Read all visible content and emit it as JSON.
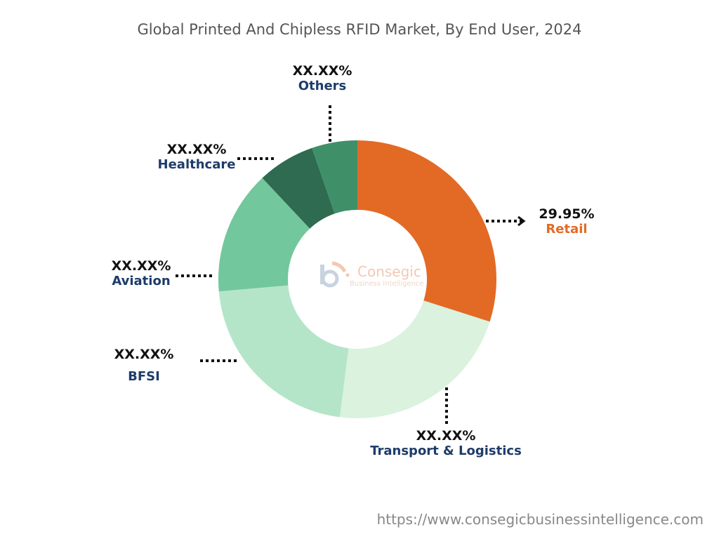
{
  "chart_data": {
    "type": "pie",
    "donut": true,
    "title": "Global Printed And Chipless RFID Market, By End User, 2024",
    "categories": [
      "Retail",
      "Transport & Logistics",
      "BFSI",
      "Aviation",
      "Healthcare",
      "Others"
    ],
    "values": [
      29.95,
      22.1,
      21.6,
      14.4,
      6.7,
      5.3
    ],
    "labels": [
      "29.95%",
      "XX.XX%",
      "XX.XX%",
      "XX.XX%",
      "XX.XX%",
      "XX.XX%"
    ],
    "colors": [
      "#E36A25",
      "#DAF2DE",
      "#B5E5C8",
      "#72C79C",
      "#2E6B50",
      "#3F9069"
    ],
    "start": "top",
    "direction": "clockwise"
  },
  "logo": {
    "name": "Consegic",
    "tagline": "Business Intelligence"
  },
  "source_url": "https://www.consegicbusinessintelligence.com"
}
